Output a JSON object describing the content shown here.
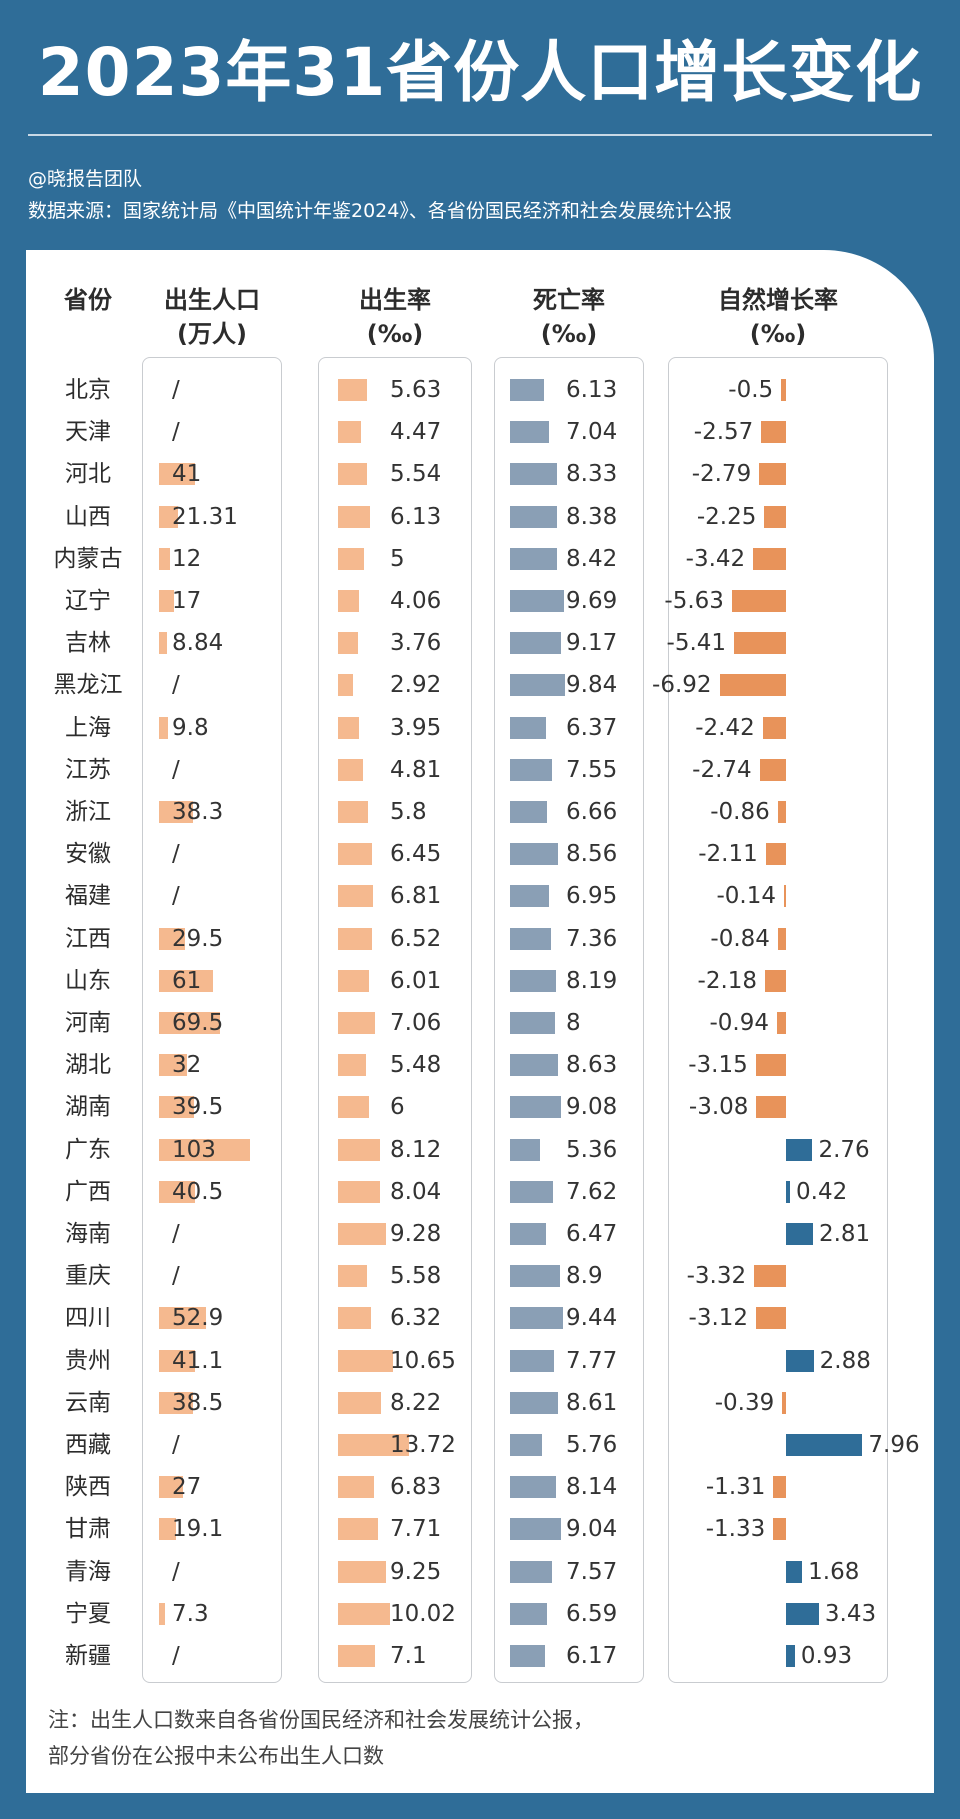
{
  "title": "2023年31省份人口增长变化",
  "author": "@晓报告团队",
  "source": "数据来源：国家统计局《中国统计年鉴2024》、各省份国民经济和社会发展统计公报",
  "note_line1": "注：出生人口数来自各省份国民经济和社会发展统计公报，",
  "note_line2": "部分省份在公报中未公布出生人口数",
  "colors": {
    "background": "#2f6d98",
    "births_bar": "#f5b98f",
    "birth_rate_bar": "#f5b98f",
    "death_rate_bar": "#8a9fb5",
    "negative_growth_bar": "#e8935a",
    "positive_growth_bar": "#2f6d98"
  },
  "chart_data": {
    "type": "table",
    "missing_symbol": "/",
    "columns": [
      {
        "key": "province",
        "label1": "省份",
        "label2": ""
      },
      {
        "key": "births",
        "label1": "出生人口",
        "label2": "(万人)"
      },
      {
        "key": "birth_rate",
        "label1": "出生率",
        "label2": "(‰)"
      },
      {
        "key": "death_rate",
        "label1": "死亡率",
        "label2": "(‰)"
      },
      {
        "key": "natural_growth",
        "label1": "自然增长率",
        "label2": "(‰)"
      }
    ],
    "rows": [
      {
        "province": "北京",
        "births": null,
        "birth_rate": 5.63,
        "death_rate": 6.13,
        "natural_growth": -0.5
      },
      {
        "province": "天津",
        "births": null,
        "birth_rate": 4.47,
        "death_rate": 7.04,
        "natural_growth": -2.57
      },
      {
        "province": "河北",
        "births": 41,
        "birth_rate": 5.54,
        "death_rate": 8.33,
        "natural_growth": -2.79
      },
      {
        "province": "山西",
        "births": 21.31,
        "birth_rate": 6.13,
        "death_rate": 8.38,
        "natural_growth": -2.25
      },
      {
        "province": "内蒙古",
        "births": 12,
        "birth_rate": 5,
        "death_rate": 8.42,
        "natural_growth": -3.42
      },
      {
        "province": "辽宁",
        "births": 17,
        "birth_rate": 4.06,
        "death_rate": 9.69,
        "natural_growth": -5.63
      },
      {
        "province": "吉林",
        "births": 8.84,
        "birth_rate": 3.76,
        "death_rate": 9.17,
        "natural_growth": -5.41
      },
      {
        "province": "黑龙江",
        "births": null,
        "birth_rate": 2.92,
        "death_rate": 9.84,
        "natural_growth": -6.92
      },
      {
        "province": "上海",
        "births": 9.8,
        "birth_rate": 3.95,
        "death_rate": 6.37,
        "natural_growth": -2.42
      },
      {
        "province": "江苏",
        "births": null,
        "birth_rate": 4.81,
        "death_rate": 7.55,
        "natural_growth": -2.74
      },
      {
        "province": "浙江",
        "births": 38.3,
        "birth_rate": 5.8,
        "death_rate": 6.66,
        "natural_growth": -0.86
      },
      {
        "province": "安徽",
        "births": null,
        "birth_rate": 6.45,
        "death_rate": 8.56,
        "natural_growth": -2.11
      },
      {
        "province": "福建",
        "births": null,
        "birth_rate": 6.81,
        "death_rate": 6.95,
        "natural_growth": -0.14
      },
      {
        "province": "江西",
        "births": 29.5,
        "birth_rate": 6.52,
        "death_rate": 7.36,
        "natural_growth": -0.84
      },
      {
        "province": "山东",
        "births": 61,
        "birth_rate": 6.01,
        "death_rate": 8.19,
        "natural_growth": -2.18
      },
      {
        "province": "河南",
        "births": 69.5,
        "birth_rate": 7.06,
        "death_rate": 8,
        "natural_growth": -0.94
      },
      {
        "province": "湖北",
        "births": 32,
        "birth_rate": 5.48,
        "death_rate": 8.63,
        "natural_growth": -3.15
      },
      {
        "province": "湖南",
        "births": 39.5,
        "birth_rate": 6,
        "death_rate": 9.08,
        "natural_growth": -3.08
      },
      {
        "province": "广东",
        "births": 103,
        "birth_rate": 8.12,
        "death_rate": 5.36,
        "natural_growth": 2.76
      },
      {
        "province": "广西",
        "births": 40.5,
        "birth_rate": 8.04,
        "death_rate": 7.62,
        "natural_growth": 0.42
      },
      {
        "province": "海南",
        "births": null,
        "birth_rate": 9.28,
        "death_rate": 6.47,
        "natural_growth": 2.81
      },
      {
        "province": "重庆",
        "births": null,
        "birth_rate": 5.58,
        "death_rate": 8.9,
        "natural_growth": -3.32
      },
      {
        "province": "四川",
        "births": 52.9,
        "birth_rate": 6.32,
        "death_rate": 9.44,
        "natural_growth": -3.12
      },
      {
        "province": "贵州",
        "births": 41.1,
        "birth_rate": 10.65,
        "death_rate": 7.77,
        "natural_growth": 2.88
      },
      {
        "province": "云南",
        "births": 38.5,
        "birth_rate": 8.22,
        "death_rate": 8.61,
        "natural_growth": -0.39
      },
      {
        "province": "西藏",
        "births": null,
        "birth_rate": 13.72,
        "death_rate": 5.76,
        "natural_growth": 7.96
      },
      {
        "province": "陕西",
        "births": 27,
        "birth_rate": 6.83,
        "death_rate": 8.14,
        "natural_growth": -1.31
      },
      {
        "province": "甘肃",
        "births": 19.1,
        "birth_rate": 7.71,
        "death_rate": 9.04,
        "natural_growth": -1.33
      },
      {
        "province": "青海",
        "births": null,
        "birth_rate": 9.25,
        "death_rate": 7.57,
        "natural_growth": 1.68
      },
      {
        "province": "宁夏",
        "births": 7.3,
        "birth_rate": 10.02,
        "death_rate": 6.59,
        "natural_growth": 3.43
      },
      {
        "province": "新疆",
        "births": null,
        "birth_rate": 7.1,
        "death_rate": 6.17,
        "natural_growth": 0.93
      }
    ]
  }
}
